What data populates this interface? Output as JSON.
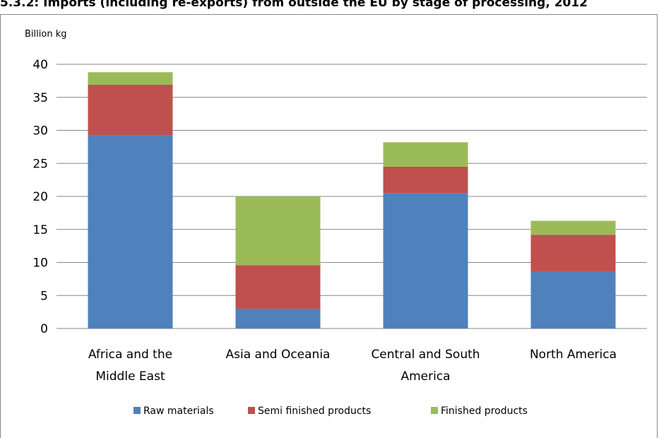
{
  "page_title": "5.3.2: Imports (including re-exports) from outside the EU by stage of processing, 2012",
  "chart_data": {
    "type": "bar",
    "stacked": true,
    "title": "",
    "xlabel": "",
    "ylabel": "Billion kg",
    "ylim": [
      0,
      40
    ],
    "yticks": [
      0,
      5,
      10,
      15,
      20,
      25,
      30,
      35,
      40
    ],
    "grid": true,
    "legend_position": "bottom",
    "categories": [
      [
        "Africa and the",
        "Middle East"
      ],
      [
        "Asia and Oceania"
      ],
      [
        "Central and South",
        "America"
      ],
      [
        "North America"
      ]
    ],
    "series": [
      {
        "name": "Raw materials",
        "color": "#4F81BD",
        "values": [
          29.3,
          3.0,
          20.5,
          8.6
        ]
      },
      {
        "name": "Semi finished products",
        "color": "#C0504D",
        "values": [
          7.6,
          6.6,
          4.0,
          5.6
        ]
      },
      {
        "name": "Finished products",
        "color": "#9BBB59",
        "values": [
          1.9,
          10.4,
          3.7,
          2.1
        ]
      }
    ]
  }
}
